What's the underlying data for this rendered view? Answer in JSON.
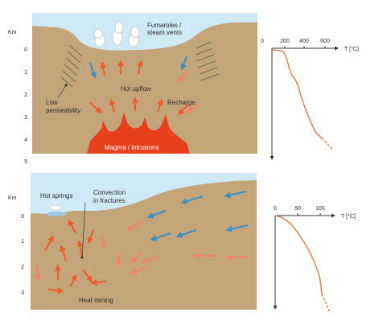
{
  "colors": {
    "sky": "#cfe9f7",
    "ground": "#c4a57a",
    "ground_dark": "#a7895f",
    "magma": "#e8401c",
    "arrow_hot": "#ee5a2a",
    "arrow_warm": "#f0836a",
    "arrow_cold": "#3a8fc4",
    "curve": "#d97a45",
    "axis": "#333333"
  },
  "top_diagram": {
    "depth_unit": "Km",
    "depth_ticks": [
      "0",
      "1",
      "2",
      "3",
      "4",
      "5"
    ],
    "labels": {
      "fumaroles": [
        "Fumaroles /",
        "steam vents"
      ],
      "hot_upflow": "Hot upflow",
      "low_permeability": [
        "Low",
        "permeability"
      ],
      "recharge": "Recharge",
      "magma": "Magma / intrusions"
    }
  },
  "top_profile": {
    "temp_unit": "T [°C]",
    "ticks": [
      "0",
      "200",
      "400",
      "600"
    ]
  },
  "bottom_diagram": {
    "depth_unit": "Km",
    "depth_ticks": [
      "0",
      "1",
      "2",
      "3"
    ],
    "labels": {
      "hot_springs": "Hot springs",
      "convection": [
        "Convection",
        "in fractures"
      ],
      "heat_mining": "Heat mining"
    }
  },
  "bottom_profile": {
    "temp_unit": "T [°C]",
    "ticks": [
      "0",
      "50",
      "100"
    ]
  }
}
